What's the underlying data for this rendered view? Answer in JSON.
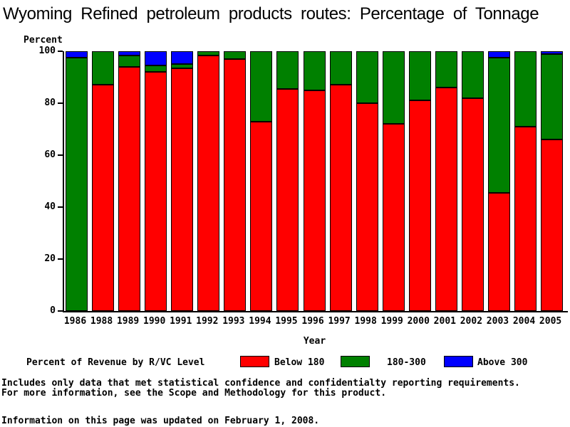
{
  "title": "Wyoming Refined petroleum products routes: Percentage of Tonnage",
  "chart_data": {
    "type": "bar",
    "stacked": true,
    "title": "Wyoming Refined petroleum products routes: Percentage of Tonnage",
    "xlabel": "Year",
    "ylabel": "Percent",
    "ylim": [
      0,
      100
    ],
    "y_ticks": [
      0,
      20,
      40,
      60,
      80,
      100
    ],
    "grid": false,
    "legend_position": "bottom",
    "legend_title": "Percent of Revenue by R/VC Level",
    "categories": [
      "1986",
      "1988",
      "1989",
      "1990",
      "1991",
      "1992",
      "1993",
      "1994",
      "1995",
      "1996",
      "1997",
      "1998",
      "1999",
      "2000",
      "2001",
      "2002",
      "2003",
      "2004",
      "2005"
    ],
    "series": [
      {
        "name": "Below 180",
        "color": "#ff0000",
        "values": [
          0,
          87,
          94,
          92,
          93.5,
          98.5,
          97,
          73,
          85.5,
          85,
          87,
          80,
          72,
          81,
          86,
          82,
          45.5,
          71,
          66
        ]
      },
      {
        "name": "180-300",
        "color": "#008000",
        "values": [
          97.5,
          13,
          4.5,
          2.5,
          1.5,
          1.5,
          3,
          27,
          14.5,
          15,
          13,
          20,
          28,
          19,
          14,
          18,
          52,
          29,
          33
        ]
      },
      {
        "name": "Above 300",
        "color": "#0000ff",
        "values": [
          2.5,
          0,
          1.5,
          5.5,
          5,
          0,
          0,
          0,
          0,
          0,
          0,
          0,
          0,
          0,
          0,
          0,
          2.5,
          0,
          1
        ]
      }
    ]
  },
  "footer": {
    "line1": "Includes only data that met statistical confidence and confidentialty reporting requirements.",
    "line2": "For more information, see the Scope and Methodology for this product.",
    "line3": "Information on this page was updated on February 1, 2008."
  }
}
